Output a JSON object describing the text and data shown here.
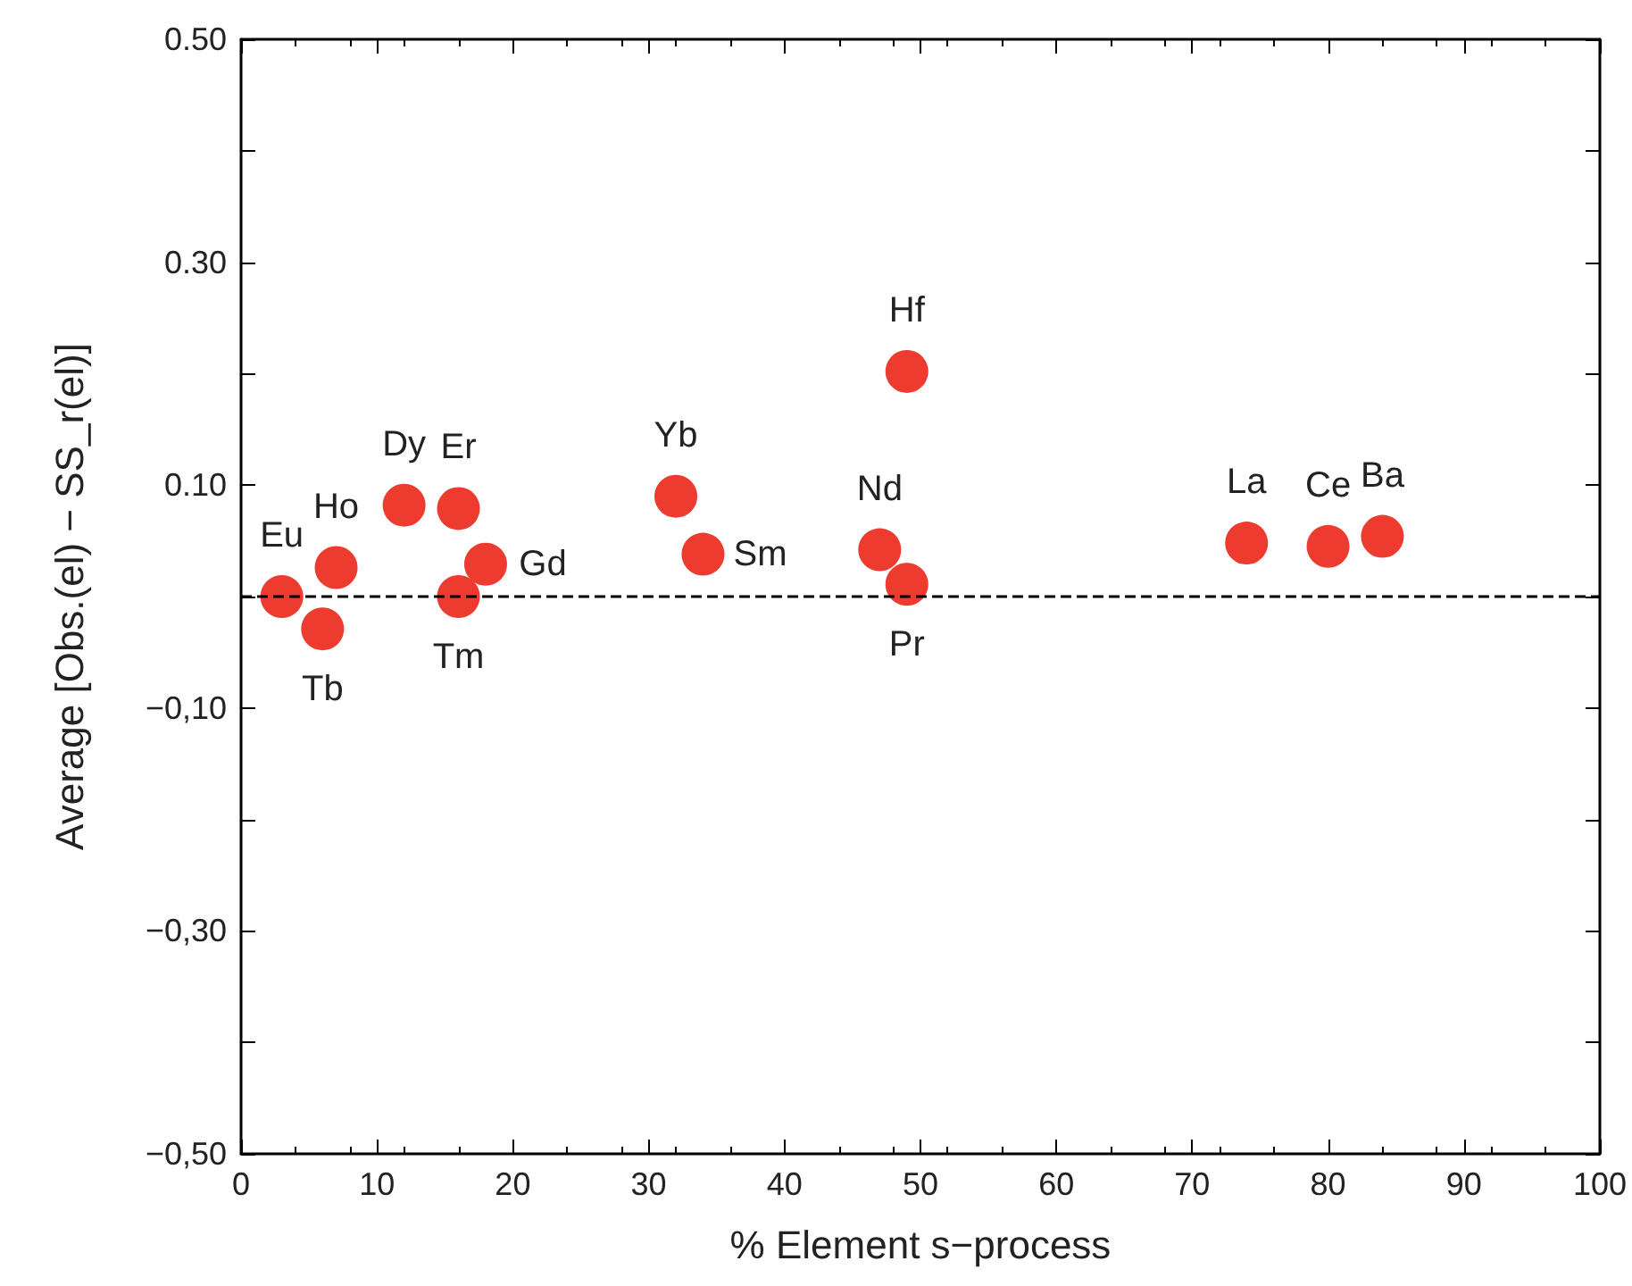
{
  "chart_data": {
    "type": "scatter",
    "xlabel": "% Element s−process",
    "ylabel": "Average [Obs.(el) − SS_r(el)]",
    "x": [
      3,
      6,
      7,
      12,
      16,
      16,
      18,
      32,
      34,
      47,
      49,
      49,
      74,
      80,
      84
    ],
    "series": [
      {
        "color": "#ee3b2f",
        "values": [
          0,
          -0.029,
          0.026,
          0.082,
          0.079,
          0,
          0.029,
          0.09,
          0.038,
          0.042,
          0.011,
          0.202,
          0.048,
          0.045,
          0.054
        ]
      }
    ],
    "xlim": [
      0,
      100
    ],
    "xticks": [
      0,
      10,
      20,
      30,
      40,
      50,
      60,
      70,
      80,
      90,
      100
    ],
    "ylim": [
      -0.5,
      0.5
    ],
    "yticks": [
      {
        "value": -0.5,
        "label": "−0,50"
      },
      {
        "value": -0.4,
        "label": null
      },
      {
        "value": -0.3,
        "label": "−0,30"
      },
      {
        "value": -0.2,
        "label": null
      },
      {
        "value": -0.1,
        "label": "−0,10"
      },
      {
        "value": 0,
        "label": null
      },
      {
        "value": 0.1,
        "label": "0.10"
      },
      {
        "value": 0.2,
        "label": null
      },
      {
        "value": 0.3,
        "label": "0.30"
      },
      {
        "value": 0.4,
        "label": null
      },
      {
        "value": 0.5,
        "label": "0.50"
      }
    ],
    "ref_lines": [
      {
        "axis": "y",
        "value": 0,
        "color": "#000000",
        "line_style": "dashed"
      }
    ],
    "marker": "circle",
    "grid": false,
    "annotations": [
      {
        "text": "Eu",
        "x": 3,
        "y": 0
      },
      {
        "text": "Tb",
        "x": 6,
        "y": -0.029
      },
      {
        "text": "Ho",
        "x": 7,
        "y": 0.026
      },
      {
        "text": "Dy",
        "x": 12,
        "y": 0.082
      },
      {
        "text": "Er",
        "x": 16,
        "y": 0.079
      },
      {
        "text": "Tm",
        "x": 16,
        "y": 0
      },
      {
        "text": "Gd",
        "x": 18,
        "y": 0.029
      },
      {
        "text": "Yb",
        "x": 32,
        "y": 0.09
      },
      {
        "text": "Sm",
        "x": 34,
        "y": 0.038
      },
      {
        "text": "Nd",
        "x": 47,
        "y": 0.042
      },
      {
        "text": "Pr",
        "x": 49,
        "y": 0.011
      },
      {
        "text": "Hf",
        "x": 49,
        "y": 0.202
      },
      {
        "text": "La",
        "x": 74,
        "y": 0.048
      },
      {
        "text": "Ce",
        "x": 80,
        "y": 0.045
      },
      {
        "text": "Ba",
        "x": 84,
        "y": 0.054
      }
    ]
  }
}
